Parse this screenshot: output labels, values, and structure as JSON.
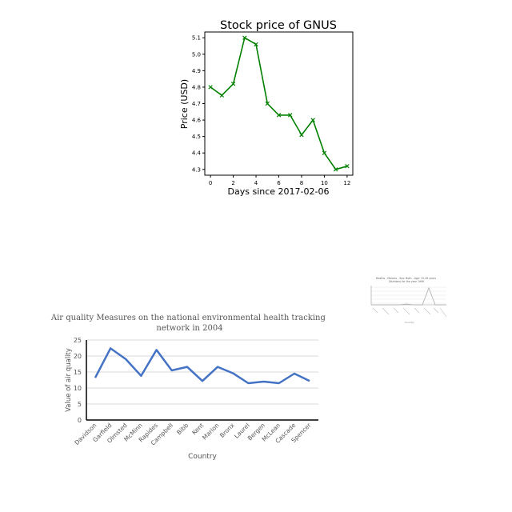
{
  "chart_data": [
    {
      "type": "line",
      "title": "Stock price of GNUS",
      "xlabel": "Days since 2017-02-06",
      "ylabel": "Price (USD)",
      "x": [
        0,
        1,
        2,
        3,
        4,
        5,
        6,
        7,
        8,
        9,
        10,
        11,
        12
      ],
      "values": [
        4.8,
        4.75,
        4.82,
        5.1,
        5.06,
        4.7,
        4.63,
        4.63,
        4.51,
        4.6,
        4.4,
        4.3,
        4.32
      ],
      "xlim": [
        -0.5,
        12.5
      ],
      "ylim": [
        4.265,
        5.135
      ],
      "x_ticks": [
        0,
        2,
        4,
        6,
        8,
        10,
        12
      ],
      "y_ticks": [
        4.3,
        4.4,
        4.5,
        4.6,
        4.7,
        4.8,
        4.9,
        5.0,
        5.1
      ],
      "line_color": "#008000",
      "marker": "x",
      "grid": false
    },
    {
      "type": "line",
      "title": "Air quality Measures on the national environmental health tracking network in 2004",
      "xlabel": "Country",
      "ylabel": "Value of air quality",
      "categories": [
        "Davidson",
        "Garfield",
        "Olmsted",
        "McMinn",
        "Rapides",
        "Campbell",
        "Bibb",
        "Kent",
        "Marion",
        "Bronx",
        "Laurel",
        "Bergen",
        "McLean",
        "Cascade",
        "Spencer"
      ],
      "values": [
        13.2,
        22.4,
        19.0,
        13.8,
        21.9,
        15.5,
        16.6,
        12.2,
        16.6,
        14.6,
        11.5,
        12.0,
        11.5,
        14.5,
        12.2
      ],
      "ylim": [
        0,
        25
      ],
      "y_ticks": [
        0,
        5,
        10,
        15,
        20,
        25
      ],
      "line_color": "#4472c4",
      "grid": true
    },
    {
      "type": "line",
      "title": "Deaths - Malaria - Sex: Both - Age: 15-49 years (Number) for the year 1999",
      "xlabel": "Country",
      "line_color": "#aaaaaa",
      "grid": true
    }
  ]
}
